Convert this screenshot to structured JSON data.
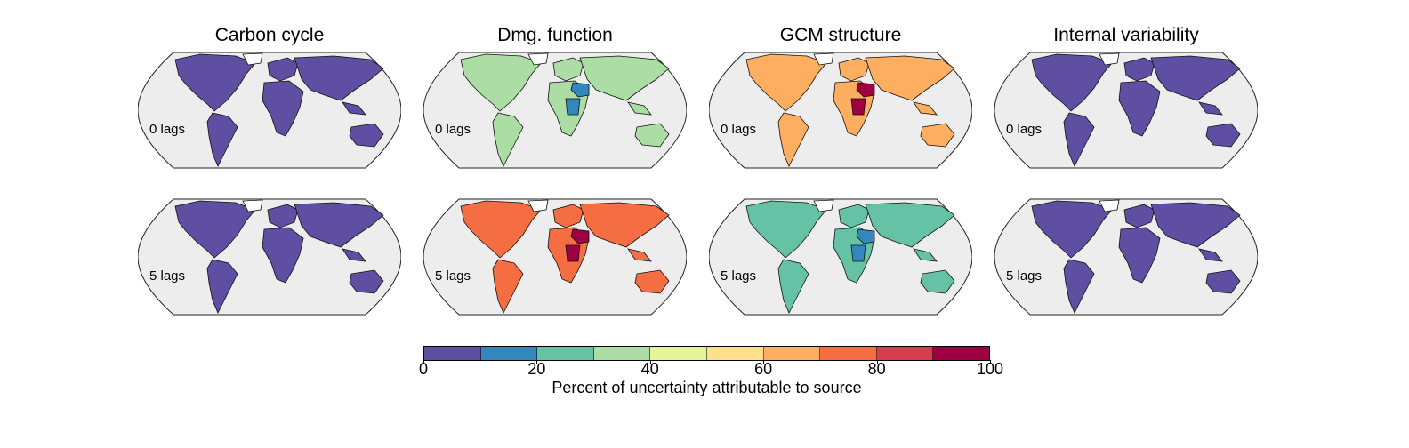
{
  "chart_data": {
    "type": "choropleth-map-grid",
    "columns": [
      "Carbon cycle",
      "Dmg. function",
      "GCM structure",
      "Internal variability"
    ],
    "rows": [
      "0 lags",
      "5 lags"
    ],
    "colorbar": {
      "label": "Percent of uncertainty attributable to source",
      "range": [
        0,
        100
      ],
      "tick_labels": [
        "0",
        "20",
        "40",
        "60",
        "80",
        "100"
      ],
      "tick_values": [
        0,
        20,
        40,
        60,
        80,
        100
      ],
      "bins": [
        {
          "from": 0,
          "to": 10,
          "color": "#5e4fa2"
        },
        {
          "from": 10,
          "to": 20,
          "color": "#3288bd"
        },
        {
          "from": 20,
          "to": 30,
          "color": "#66c2a5"
        },
        {
          "from": 30,
          "to": 40,
          "color": "#abdda4"
        },
        {
          "from": 40,
          "to": 50,
          "color": "#e6f598"
        },
        {
          "from": 50,
          "to": 60,
          "color": "#fee08b"
        },
        {
          "from": 60,
          "to": 70,
          "color": "#fdae61"
        },
        {
          "from": 70,
          "to": 80,
          "color": "#f46d43"
        },
        {
          "from": 80,
          "to": 90,
          "color": "#d53e4f"
        },
        {
          "from": 90,
          "to": 100,
          "color": "#9e0142"
        }
      ]
    },
    "panels": [
      {
        "column": "Carbon cycle",
        "row": "0 lags",
        "predominant_bin": "0-10",
        "hotspot_bin": null,
        "ocean_color": "#ededed"
      },
      {
        "column": "Dmg. function",
        "row": "0 lags",
        "predominant_bin": "30-40",
        "hotspot_bin": "10-20",
        "ocean_color": "#ededed"
      },
      {
        "column": "GCM structure",
        "row": "0 lags",
        "predominant_bin": "60-70",
        "hotspot_bin": "90-100",
        "ocean_color": "#ededed"
      },
      {
        "column": "Internal variability",
        "row": "0 lags",
        "predominant_bin": "0-10",
        "hotspot_bin": null,
        "ocean_color": "#ededed"
      },
      {
        "column": "Carbon cycle",
        "row": "5 lags",
        "predominant_bin": "0-10",
        "hotspot_bin": null,
        "ocean_color": "#ededed"
      },
      {
        "column": "Dmg. function",
        "row": "5 lags",
        "predominant_bin": "70-80",
        "hotspot_bin": "90-100",
        "ocean_color": "#ededed"
      },
      {
        "column": "GCM structure",
        "row": "5 lags",
        "predominant_bin": "20-30",
        "hotspot_bin": "10-20",
        "ocean_color": "#ededed"
      },
      {
        "column": "Internal variability",
        "row": "5 lags",
        "predominant_bin": "0-10",
        "hotspot_bin": null,
        "ocean_color": "#ededed"
      }
    ]
  }
}
